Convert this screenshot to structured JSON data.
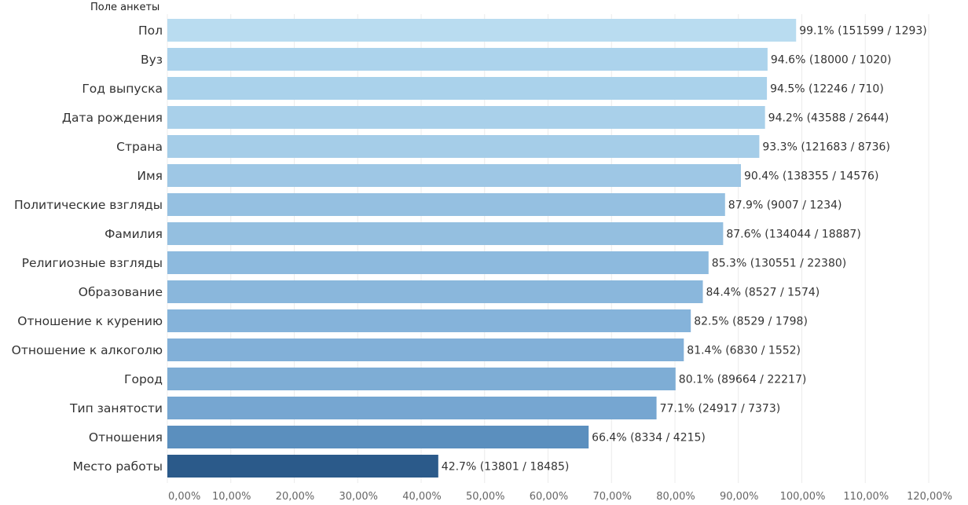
{
  "chart_data": {
    "type": "bar",
    "orientation": "horizontal",
    "row_header": "Поле анкеты",
    "categories": [
      "Пол",
      "Вуз",
      "Год выпуска",
      "Дата рождения",
      "Страна",
      "Имя",
      "Политические взгляды",
      "Фамилия",
      "Религиозные взгляды",
      "Образование",
      "Отношение к курению",
      "Отношение к алкоголю",
      "Город",
      "Тип занятости",
      "Отношения",
      "Место работы"
    ],
    "values": [
      99.1,
      94.6,
      94.5,
      94.2,
      93.3,
      90.4,
      87.9,
      87.6,
      85.3,
      84.4,
      82.5,
      81.4,
      80.1,
      77.1,
      66.4,
      42.7
    ],
    "data_labels": [
      "99.1% (151599 / 1293)",
      "94.6% (18000 / 1020)",
      "94.5% (12246 / 710)",
      "94.2% (43588 / 2644)",
      "93.3% (121683 / 8736)",
      "90.4% (138355 / 14576)",
      "87.9% (9007 / 1234)",
      "87.6% (134044 / 18887)",
      "85.3% (130551 / 22380)",
      "84.4% (8527 / 1574)",
      "82.5% (8529 / 1798)",
      "81.4% (6830 / 1552)",
      "80.1% (89664 / 22217)",
      "77.1% (24917 / 7373)",
      "66.4% (8334 / 4215)",
      "42.7% (13801 / 18485)"
    ],
    "bar_colors": [
      "#b9dcf0",
      "#acd3ec",
      "#aad2eb",
      "#a9d0ea",
      "#a5cde8",
      "#9ec7e5",
      "#95c0e1",
      "#94bfe0",
      "#8dbade",
      "#8ab7dc",
      "#85b3da",
      "#82b0d8",
      "#7eadd5",
      "#76a6d1",
      "#5b8fbe",
      "#2b5a8a"
    ],
    "x_ticks": [
      "0,00%",
      "10,00%",
      "20,00%",
      "30,00%",
      "40,00%",
      "50,00%",
      "60,00%",
      "70,00%",
      "80,00%",
      "90,00%",
      "100,00%",
      "110,00%",
      "120,00%"
    ],
    "xlim": [
      0,
      120
    ],
    "grid": true,
    "grid_color": "#ececec"
  }
}
